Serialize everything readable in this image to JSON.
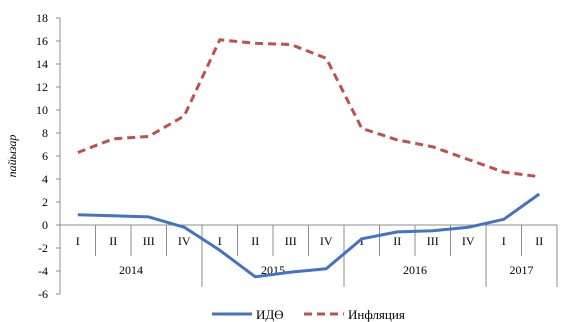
{
  "chart_data": {
    "type": "line",
    "title": "",
    "xlabel": "",
    "ylabel": "пайызар",
    "ylim": [
      -6,
      18
    ],
    "yticks": [
      -6,
      -4,
      -2,
      0,
      2,
      4,
      6,
      8,
      10,
      12,
      14,
      16,
      18
    ],
    "grid": false,
    "legend_position": "bottom",
    "categories": [
      "I",
      "II",
      "III",
      "IV",
      "I",
      "II",
      "III",
      "IV",
      "I",
      "II",
      "III",
      "IV",
      "I",
      "II"
    ],
    "year_groups": [
      {
        "label": "2014",
        "span": 4
      },
      {
        "label": "2015",
        "span": 4
      },
      {
        "label": "2016",
        "span": 4
      },
      {
        "label": "2017",
        "span": 2
      }
    ],
    "series": [
      {
        "name": "ИДӨ",
        "color": "#4472c4",
        "style": "solid",
        "values": [
          0.9,
          0.8,
          0.7,
          -0.2,
          -2.2,
          -4.5,
          -4.1,
          -3.8,
          -1.2,
          -0.6,
          -0.5,
          -0.2,
          0.5,
          2.7
        ]
      },
      {
        "name": "Инфляция",
        "color": "#c0504d",
        "style": "dashed",
        "values": [
          6.3,
          7.5,
          7.7,
          9.5,
          16.1,
          15.8,
          15.7,
          14.5,
          8.4,
          7.4,
          6.8,
          5.7,
          4.6,
          4.2
        ]
      }
    ]
  }
}
